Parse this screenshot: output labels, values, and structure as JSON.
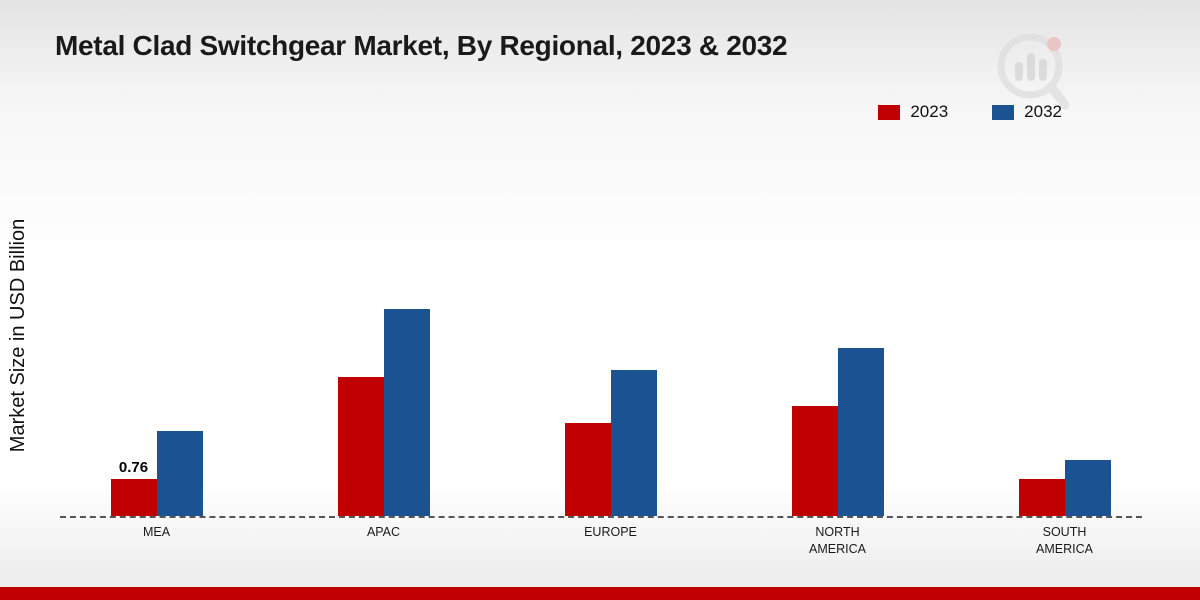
{
  "header": {
    "title": "Metal Clad Switchgear Market, By Regional, 2023 & 2032"
  },
  "legend": {
    "items": [
      {
        "label": "2023",
        "color": "#c00000"
      },
      {
        "label": "2032",
        "color": "#1b5291"
      }
    ]
  },
  "chart_data": {
    "type": "bar",
    "title": "Metal Clad Switchgear Market, By Regional, 2023 & 2032",
    "xlabel": "",
    "ylabel": "Market Size in USD Billion",
    "categories": [
      "MEA",
      "APAC",
      "EUROPE",
      "NORTH AMERICA",
      "SOUTH AMERICA"
    ],
    "series": [
      {
        "name": "2023",
        "color": "#c00000",
        "values": [
          0.76,
          2.85,
          1.9,
          2.25,
          0.76
        ]
      },
      {
        "name": "2032",
        "color": "#1b5291",
        "values": [
          1.75,
          4.25,
          3.0,
          3.45,
          1.15
        ]
      }
    ],
    "annotations": [
      {
        "series": "2023",
        "category": "MEA",
        "text": "0.76"
      }
    ],
    "ylim": [
      0,
      4.6
    ],
    "grid": false,
    "legend_position": "top-right",
    "baseline_style": "dashed"
  },
  "footer": {
    "accent_color": "#c00000"
  }
}
